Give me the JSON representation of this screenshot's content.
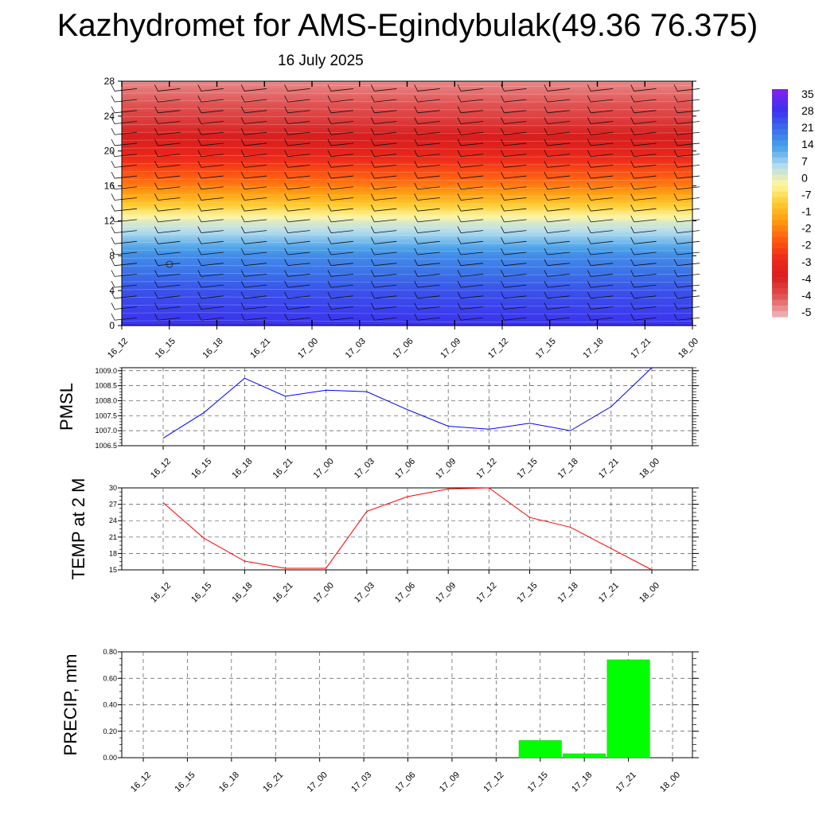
{
  "title": "Kazhydromet for AMS-Egindybulak(49.36 76.375)",
  "subtitle": "16 July 2025",
  "time_labels": [
    "16_12",
    "16_15",
    "16_18",
    "16_21",
    "17_00",
    "17_03",
    "17_06",
    "17_09",
    "17_12",
    "17_15",
    "17_18",
    "17_21",
    "18_00"
  ],
  "chart_data": [
    {
      "type": "heatmap",
      "title": "",
      "xlabel": "",
      "ylabel": "",
      "categories": [
        "16_12",
        "16_15",
        "16_18",
        "16_21",
        "17_00",
        "17_03",
        "17_06",
        "17_09",
        "17_12",
        "17_15",
        "17_18",
        "17_21",
        "18_00"
      ],
      "y_ticks": [
        "0",
        "4",
        "8",
        "12",
        "16",
        "20",
        "24",
        "28"
      ],
      "ylim": [
        0,
        28
      ],
      "colorbar_labels": [
        "35",
        "28",
        "21",
        "14",
        "7",
        "0",
        "-7",
        "-1",
        "-2",
        "-2",
        "-3",
        "-4",
        "-4",
        "-5"
      ],
      "colorscale": [
        "#7a22ee",
        "#3b30ee",
        "#3a6ee8",
        "#4aa2ea",
        "#b4dcee",
        "#fff5a0",
        "#ffcc30",
        "#ff9a10",
        "#ff5a10",
        "#ee2a1a",
        "#d81e1e",
        "#e05050",
        "#eeaaaa"
      ],
      "temperature_by_level_c": [
        {
          "level": 0,
          "value": 28
        },
        {
          "level": 4,
          "value": 24
        },
        {
          "level": 8,
          "value": 16
        },
        {
          "level": 12,
          "value": 0
        },
        {
          "level": 14,
          "value": -12
        },
        {
          "level": 16,
          "value": -22
        },
        {
          "level": 20,
          "value": -38
        },
        {
          "level": 24,
          "value": -48
        },
        {
          "level": 28,
          "value": -55
        }
      ],
      "wind_barbs": true
    },
    {
      "type": "line",
      "ylabel": "PMSL",
      "color": "#0000ff",
      "categories": [
        "16_12",
        "16_15",
        "16_18",
        "16_21",
        "17_00",
        "17_03",
        "17_06",
        "17_09",
        "17_12",
        "17_15",
        "17_18",
        "17_21",
        "18_00"
      ],
      "y_ticks": [
        "1006.5",
        "1007.0",
        "1007.5",
        "1008.0",
        "1008.5",
        "1009.0"
      ],
      "ylim": [
        1006.5,
        1009.1
      ],
      "values": [
        1006.75,
        1007.6,
        1008.75,
        1008.15,
        1008.35,
        1008.3,
        1007.7,
        1007.15,
        1007.05,
        1007.25,
        1007.0,
        1007.8,
        1009.1
      ],
      "grid": true
    },
    {
      "type": "line",
      "ylabel": "TEMP at 2 M",
      "color": "#ff0000",
      "categories": [
        "16_12",
        "16_15",
        "16_18",
        "16_21",
        "17_00",
        "17_03",
        "17_06",
        "17_09",
        "17_12",
        "17_15",
        "17_18",
        "17_21",
        "18_00"
      ],
      "y_ticks": [
        "15",
        "18",
        "21",
        "24",
        "27",
        "30"
      ],
      "ylim": [
        15,
        30
      ],
      "values": [
        27.3,
        20.8,
        16.6,
        15.3,
        15.3,
        25.7,
        28.4,
        29.8,
        30.0,
        24.6,
        22.8,
        18.9,
        15.0
      ],
      "grid": true
    },
    {
      "type": "bar",
      "ylabel": "PRECIP, mm",
      "color": "#00ff00",
      "categories": [
        "16_12",
        "16_15",
        "16_18",
        "16_21",
        "17_00",
        "17_03",
        "17_06",
        "17_09",
        "17_12",
        "17_15",
        "17_18",
        "17_21",
        "18_00"
      ],
      "y_ticks": [
        "0.00",
        "0.20",
        "0.40",
        "0.60",
        "0.80"
      ],
      "ylim": [
        0,
        0.8
      ],
      "values": [
        0,
        0,
        0,
        0,
        0,
        0,
        0,
        0,
        0,
        0.13,
        0.03,
        0.74,
        0
      ],
      "grid": true
    }
  ]
}
